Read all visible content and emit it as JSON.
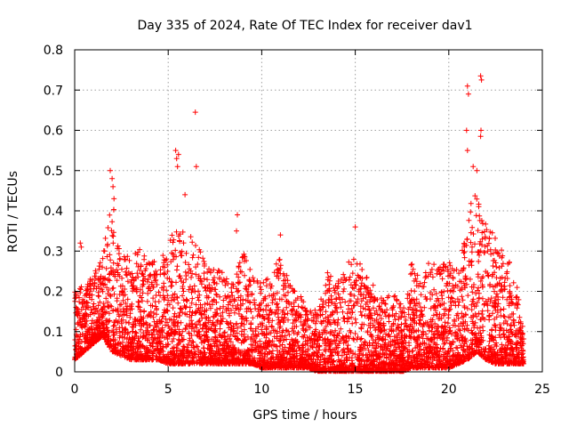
{
  "chart_data": {
    "type": "scatter",
    "title": "Day 335 of 2024, Rate Of TEC Index for receiver dav1",
    "xlabel": "GPS time / hours",
    "ylabel": "ROTI / TECUs",
    "xlim": [
      0,
      25
    ],
    "ylim": [
      0,
      0.8
    ],
    "xticks": [
      0,
      5,
      10,
      15,
      20,
      25
    ],
    "yticks": [
      0,
      0.1,
      0.2,
      0.3,
      0.4,
      0.5,
      0.6,
      0.7,
      0.8
    ],
    "xtick_labels": [
      "0",
      "5",
      "10",
      "15",
      "20",
      "25"
    ],
    "ytick_labels": [
      "0",
      "0.1",
      "0.2",
      "0.3",
      "0.4",
      "0.5",
      "0.6",
      "0.7",
      "0.8"
    ],
    "grid": true,
    "marker": "plus",
    "color": "#ff0000",
    "envelope": {
      "description_hours": [
        0,
        0.5,
        1,
        1.5,
        2,
        2.5,
        3,
        3.5,
        4,
        4.5,
        5,
        5.5,
        6,
        6.5,
        7,
        7.5,
        8,
        8.5,
        9,
        9.5,
        10,
        10.5,
        11,
        11.5,
        12,
        12.5,
        13,
        13.5,
        14,
        14.5,
        15,
        15.5,
        16,
        16.5,
        17,
        17.5,
        18,
        18.5,
        19,
        19.5,
        20,
        20.5,
        21,
        21.5,
        22,
        22.5,
        23,
        23.5,
        24
      ],
      "upper": [
        0.2,
        0.22,
        0.24,
        0.29,
        0.44,
        0.3,
        0.28,
        0.31,
        0.28,
        0.27,
        0.32,
        0.38,
        0.34,
        0.33,
        0.28,
        0.26,
        0.25,
        0.22,
        0.3,
        0.24,
        0.22,
        0.24,
        0.3,
        0.22,
        0.2,
        0.15,
        0.16,
        0.25,
        0.22,
        0.27,
        0.3,
        0.24,
        0.22,
        0.18,
        0.2,
        0.17,
        0.27,
        0.25,
        0.28,
        0.26,
        0.28,
        0.25,
        0.4,
        0.45,
        0.38,
        0.33,
        0.3,
        0.26,
        0.1
      ],
      "lower": [
        0.03,
        0.05,
        0.07,
        0.09,
        0.05,
        0.04,
        0.03,
        0.03,
        0.03,
        0.03,
        0.02,
        0.02,
        0.02,
        0.02,
        0.02,
        0.02,
        0.02,
        0.02,
        0.02,
        0.02,
        0.01,
        0.01,
        0.01,
        0.01,
        0.01,
        0.01,
        0.0,
        0.0,
        0.0,
        0.0,
        0.0,
        0.0,
        0.0,
        0.0,
        0.0,
        0.0,
        0.01,
        0.01,
        0.01,
        0.01,
        0.01,
        0.02,
        0.03,
        0.05,
        0.03,
        0.02,
        0.02,
        0.02,
        0.02
      ]
    },
    "outliers": [
      {
        "x": 0.3,
        "y": 0.32
      },
      {
        "x": 0.35,
        "y": 0.31
      },
      {
        "x": 1.9,
        "y": 0.5
      },
      {
        "x": 2.0,
        "y": 0.48
      },
      {
        "x": 2.05,
        "y": 0.46
      },
      {
        "x": 2.1,
        "y": 0.43
      },
      {
        "x": 5.4,
        "y": 0.55
      },
      {
        "x": 5.45,
        "y": 0.53
      },
      {
        "x": 5.5,
        "y": 0.51
      },
      {
        "x": 5.55,
        "y": 0.54
      },
      {
        "x": 6.45,
        "y": 0.645
      },
      {
        "x": 6.5,
        "y": 0.51
      },
      {
        "x": 5.9,
        "y": 0.44
      },
      {
        "x": 8.7,
        "y": 0.39
      },
      {
        "x": 8.65,
        "y": 0.35
      },
      {
        "x": 11.0,
        "y": 0.34
      },
      {
        "x": 15.0,
        "y": 0.36
      },
      {
        "x": 21.0,
        "y": 0.71
      },
      {
        "x": 21.05,
        "y": 0.69
      },
      {
        "x": 20.95,
        "y": 0.6
      },
      {
        "x": 21.7,
        "y": 0.735
      },
      {
        "x": 21.75,
        "y": 0.725
      },
      {
        "x": 21.72,
        "y": 0.6
      },
      {
        "x": 21.7,
        "y": 0.585
      },
      {
        "x": 21.3,
        "y": 0.51
      },
      {
        "x": 21.0,
        "y": 0.55
      },
      {
        "x": 21.5,
        "y": 0.5
      }
    ]
  }
}
